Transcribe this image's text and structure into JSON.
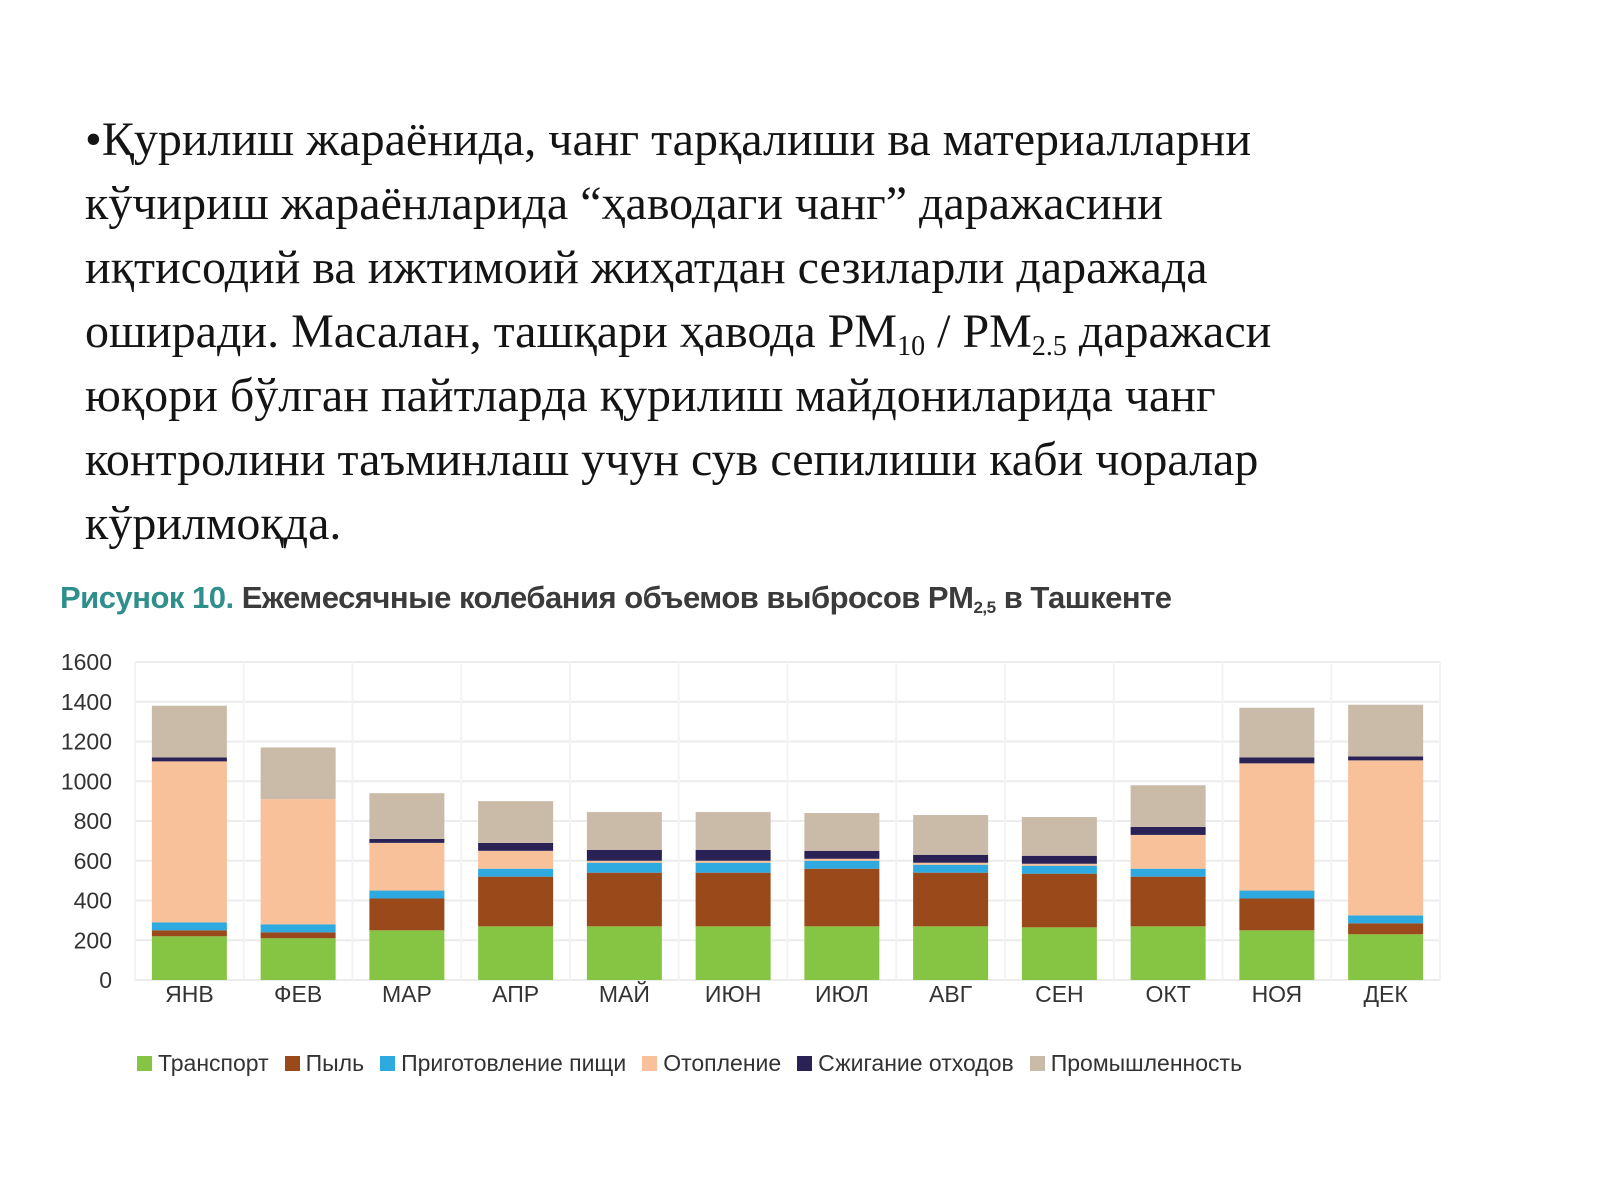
{
  "paragraph": {
    "bullet": "•",
    "line1": "Қурилиш жараёнида, чанг тарқалиши ва материалларни",
    "line2": "кўчириш жараёнларида “ҳаводаги чанг” даражасини",
    "line3": "иқтисодий ва ижтимоий жиҳатдан сезиларли даражада",
    "line4_a": "оширади. Масалан, ташқари ҳавода PM",
    "line4_sub1": "10",
    "line4_b": " / PM",
    "line4_sub2": "2.5",
    "line4_c": " даражаси",
    "line5": "юқори бўлган пайтларда қурилиш майдониларида чанг",
    "line6": "контролини таъминлаш учун сув сепилиши каби чоралар",
    "line7": "кўрилмоқда."
  },
  "figure": {
    "label": "Рисунок 10.",
    "title_a": " Ежемесячные колебания объемов выбросов PM",
    "title_sub": "2,5",
    "title_b": " в Ташкенте"
  },
  "colors": {
    "Транспорт": "#86c544",
    "Пыль": "#9a4a1a",
    "Приготовление пищи": "#2eaae1",
    "Отопление": "#f8c199",
    "Сжигание отходов": "#2a2155",
    "Промышленность": "#c9bba8"
  },
  "chart_data": {
    "type": "bar",
    "stacked": true,
    "categories": [
      "ЯНВ",
      "ФЕВ",
      "МАР",
      "АПР",
      "МАЙ",
      "ИЮН",
      "ИЮЛ",
      "АВГ",
      "СЕН",
      "ОКТ",
      "НОЯ",
      "ДЕК"
    ],
    "yticks": [
      0,
      200,
      400,
      600,
      800,
      1000,
      1200,
      1400,
      1600
    ],
    "ylim": [
      0,
      1600
    ],
    "grid": true,
    "legend_position": "bottom",
    "series": [
      {
        "name": "Транспорт",
        "values": [
          220,
          210,
          250,
          270,
          270,
          270,
          270,
          270,
          265,
          270,
          250,
          230
        ]
      },
      {
        "name": "Пыль",
        "values": [
          30,
          30,
          160,
          250,
          270,
          270,
          290,
          270,
          270,
          250,
          160,
          55
        ]
      },
      {
        "name": "Приготовление пищи",
        "values": [
          40,
          40,
          40,
          40,
          50,
          50,
          40,
          40,
          40,
          40,
          40,
          40
        ]
      },
      {
        "name": "Отопление",
        "values": [
          810,
          630,
          240,
          90,
          10,
          10,
          10,
          10,
          10,
          170,
          640,
          780
        ]
      },
      {
        "name": "Сжигание отходов",
        "values": [
          20,
          0,
          20,
          40,
          55,
          55,
          40,
          40,
          40,
          40,
          30,
          20
        ]
      },
      {
        "name": "Промышленность",
        "values": [
          260,
          260,
          230,
          210,
          190,
          190,
          190,
          200,
          195,
          210,
          250,
          260
        ]
      }
    ]
  }
}
